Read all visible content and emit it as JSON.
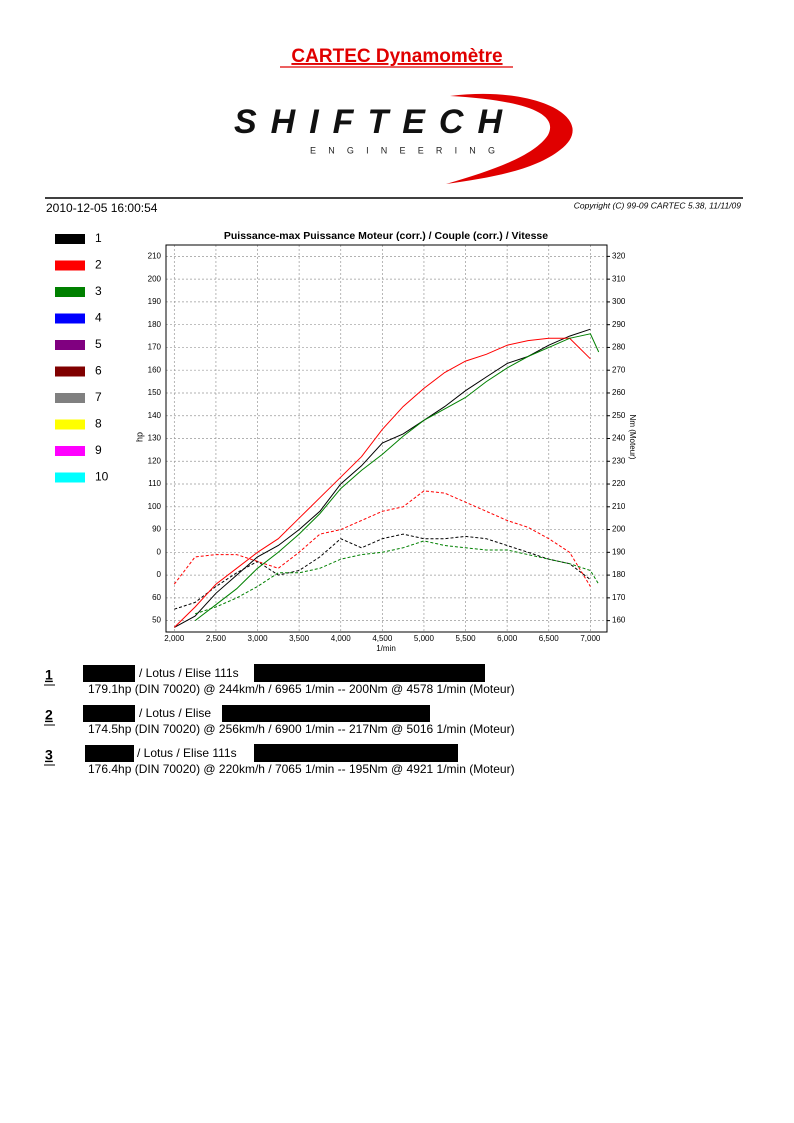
{
  "header": {
    "title": "CARTEC Dynamomètre",
    "logo": "SHIFTECH",
    "logo_sub": "E N G I N E E R I N G",
    "date": "2010-12-05 16:00:54",
    "copyright": "Copyright (C) 99-09 CARTEC 5.38, 11/11/09"
  },
  "chart_data": {
    "type": "line",
    "title": "Puissance-max Puissance Moteur (corr.) / Couple (corr.) / Vitesse",
    "xlabel": "1/min",
    "ylabel": "hp",
    "y2label": "Nm (Moteur)",
    "xlim": [
      1900,
      7200
    ],
    "xticks": [
      {
        "value": 2000,
        "label": "2,000"
      },
      {
        "value": 2500,
        "label": "2,500"
      },
      {
        "value": 3000,
        "label": "3,000"
      },
      {
        "value": 3500,
        "label": "3,500"
      },
      {
        "value": 4000,
        "label": "4,000"
      },
      {
        "value": 4500,
        "label": "4,500"
      },
      {
        "value": 5000,
        "label": "5,000"
      },
      {
        "value": 5500,
        "label": "5,500"
      },
      {
        "value": 6000,
        "label": "6,000"
      },
      {
        "value": 6500,
        "label": "6,500"
      },
      {
        "value": 7000,
        "label": "7,000"
      }
    ],
    "ylim": [
      45,
      215
    ],
    "yticks": [
      50,
      60,
      {
        "value": 70,
        "label": "0"
      },
      {
        "value": 80,
        "label": "0"
      },
      90,
      100,
      110,
      120,
      130,
      140,
      150,
      160,
      170,
      180,
      190,
      200,
      210
    ],
    "y2lim": [
      155,
      325
    ],
    "y2ticks": [
      160,
      170,
      180,
      190,
      200,
      210,
      220,
      230,
      240,
      250,
      260,
      270,
      280,
      290,
      300,
      310,
      320
    ],
    "grid": true,
    "x": [
      2000,
      2250,
      2500,
      2750,
      3000,
      3250,
      3500,
      3750,
      4000,
      4250,
      4500,
      4750,
      5000,
      5250,
      5500,
      5750,
      6000,
      6250,
      6500,
      6750,
      7000,
      7100
    ],
    "series": [
      {
        "name": "1",
        "color": "#000000",
        "power": [
          47,
          52,
          62,
          70,
          78,
          83,
          90,
          98,
          110,
          118,
          128,
          132,
          138,
          144,
          151,
          157,
          163,
          166,
          171,
          175,
          178,
          null
        ],
        "torque": [
          165,
          168,
          175,
          181,
          186,
          180,
          182,
          188,
          196,
          192,
          196,
          198,
          196,
          196,
          197,
          196,
          193,
          190,
          187,
          185,
          178,
          null
        ]
      },
      {
        "name": "2",
        "color": "#ff0000",
        "power": [
          47,
          56,
          66,
          73,
          80,
          86,
          95,
          104,
          113,
          122,
          134,
          144,
          152,
          159,
          164,
          167,
          171,
          173,
          174,
          174,
          165,
          null
        ],
        "torque": [
          176,
          188,
          189,
          189,
          186,
          183,
          190,
          198,
          200,
          204,
          208,
          210,
          217,
          216,
          212,
          208,
          204,
          201,
          196,
          190,
          175,
          null
        ]
      },
      {
        "name": "3",
        "color": "#008000",
        "power": [
          null,
          50,
          57,
          64,
          73,
          80,
          88,
          97,
          108,
          116,
          123,
          131,
          138,
          143,
          148,
          155,
          161,
          166,
          170,
          174,
          176,
          168
        ],
        "torque": [
          null,
          163,
          166,
          170,
          175,
          181,
          181,
          183,
          187,
          189,
          190,
          192,
          195,
          193,
          192,
          191,
          191,
          189,
          187,
          185,
          182,
          176
        ]
      },
      {
        "name": "4",
        "color": "#0000ff"
      },
      {
        "name": "5",
        "color": "#800080"
      },
      {
        "name": "6",
        "color": "#800000"
      },
      {
        "name": "7",
        "color": "#808080"
      },
      {
        "name": "8",
        "color": "#ffff00"
      },
      {
        "name": "9",
        "color": "#ff00ff"
      },
      {
        "name": "10",
        "color": "#00ffff"
      }
    ]
  },
  "runs": [
    {
      "number": "1",
      "model": "/ Lotus / Elise 111s",
      "detail": "179.1hp (DIN 70020) @ 244km/h / 6965 1/min -- 200Nm @ 4578 1/min (Moteur)"
    },
    {
      "number": "2",
      "model": "/ Lotus / Elise",
      "detail": "174.5hp (DIN 70020) @ 256km/h / 6900 1/min -- 217Nm @ 5016 1/min (Moteur)"
    },
    {
      "number": "3",
      "model": "/ Lotus / Elise 111s",
      "detail": "176.4hp (DIN 70020) @ 220km/h / 7065 1/min -- 195Nm @ 4921 1/min (Moteur)"
    }
  ]
}
